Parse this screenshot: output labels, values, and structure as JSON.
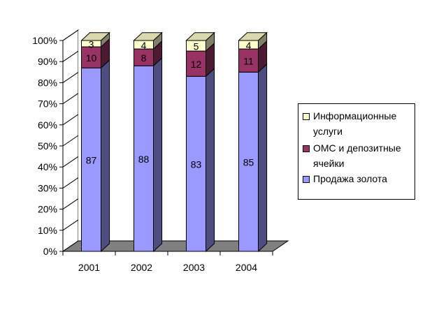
{
  "chart_data": {
    "type": "bar",
    "stacked": "percent",
    "three_d": true,
    "title": "",
    "categories": [
      "2001",
      "2002",
      "2003",
      "2004"
    ],
    "series": [
      {
        "name": "Продажа золота",
        "values": [
          87,
          88,
          83,
          85
        ],
        "color": "#9999ff"
      },
      {
        "name": "ОМС и депозитные ячейки",
        "values": [
          10,
          8,
          12,
          11
        ],
        "color": "#993366"
      },
      {
        "name": "Информационные услуги",
        "values": [
          3,
          4,
          5,
          4
        ],
        "color": "#ffffcc"
      }
    ],
    "data_labels": [
      [
        "87",
        "88",
        "83",
        "85"
      ],
      [
        "10",
        "8",
        "12",
        "11"
      ],
      [
        "3",
        "4",
        "5",
        "4"
      ]
    ],
    "y_ticks": [
      "0%",
      "10%",
      "20%",
      "30%",
      "40%",
      "50%",
      "60%",
      "70%",
      "80%",
      "90%",
      "100%"
    ],
    "ylim": [
      0,
      100
    ],
    "grid": false,
    "legend_position": "right",
    "floor_color": "#808080"
  }
}
